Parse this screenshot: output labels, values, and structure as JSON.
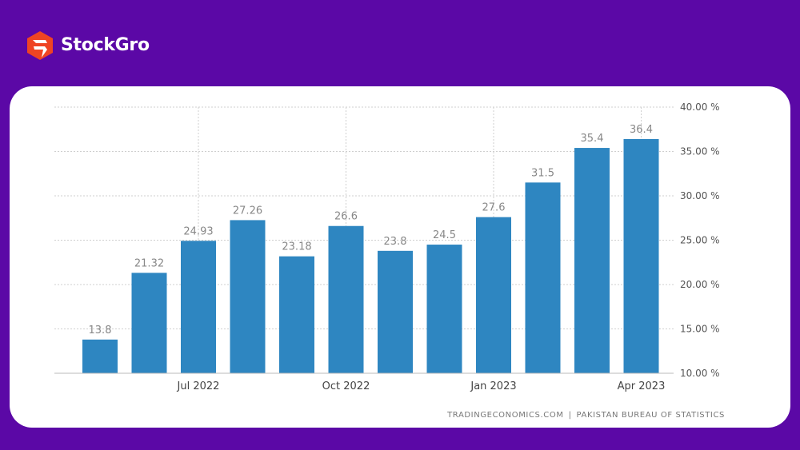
{
  "brand": {
    "name": "StockGro",
    "logo_icon": "stockgro-logo-icon",
    "logo_color": "#ef4423"
  },
  "colors": {
    "background": "#5b08a6",
    "card": "#ffffff",
    "bar": "#2e86c1",
    "label": "#888888",
    "grid": "#cfcfcf"
  },
  "source": {
    "site": "TRADINGECONOMICS.COM",
    "separator": "|",
    "provider": "PAKISTAN BUREAU OF STATISTICS"
  },
  "chart_data": {
    "type": "bar",
    "categories": [
      "",
      "",
      "Jul 2022",
      "",
      "",
      "Oct 2022",
      "",
      "",
      "Jan 2023",
      "",
      "",
      "Apr 2023"
    ],
    "x_tick_labels": [
      "Jul 2022",
      "Oct 2022",
      "Jan 2023",
      "Apr 2023"
    ],
    "values": [
      13.8,
      21.32,
      24.93,
      27.26,
      23.18,
      26.6,
      23.8,
      24.5,
      27.6,
      31.5,
      35.4,
      36.4
    ],
    "value_labels": [
      "13.8",
      "21.32",
      "24.93",
      "27.26",
      "23.18",
      "26.6",
      "23.8",
      "24.5",
      "27.6",
      "31.5",
      "35.4",
      "36.4"
    ],
    "y_ticks": [
      10,
      15,
      20,
      25,
      30,
      35,
      40
    ],
    "y_tick_labels": [
      "10.00 %",
      "15.00 %",
      "20.00 %",
      "25.00 %",
      "30.00 %",
      "35.00 %",
      "40.00 %"
    ],
    "ylim": [
      10,
      40
    ],
    "y_axis_position": "right",
    "grid": true,
    "legend": "none"
  }
}
